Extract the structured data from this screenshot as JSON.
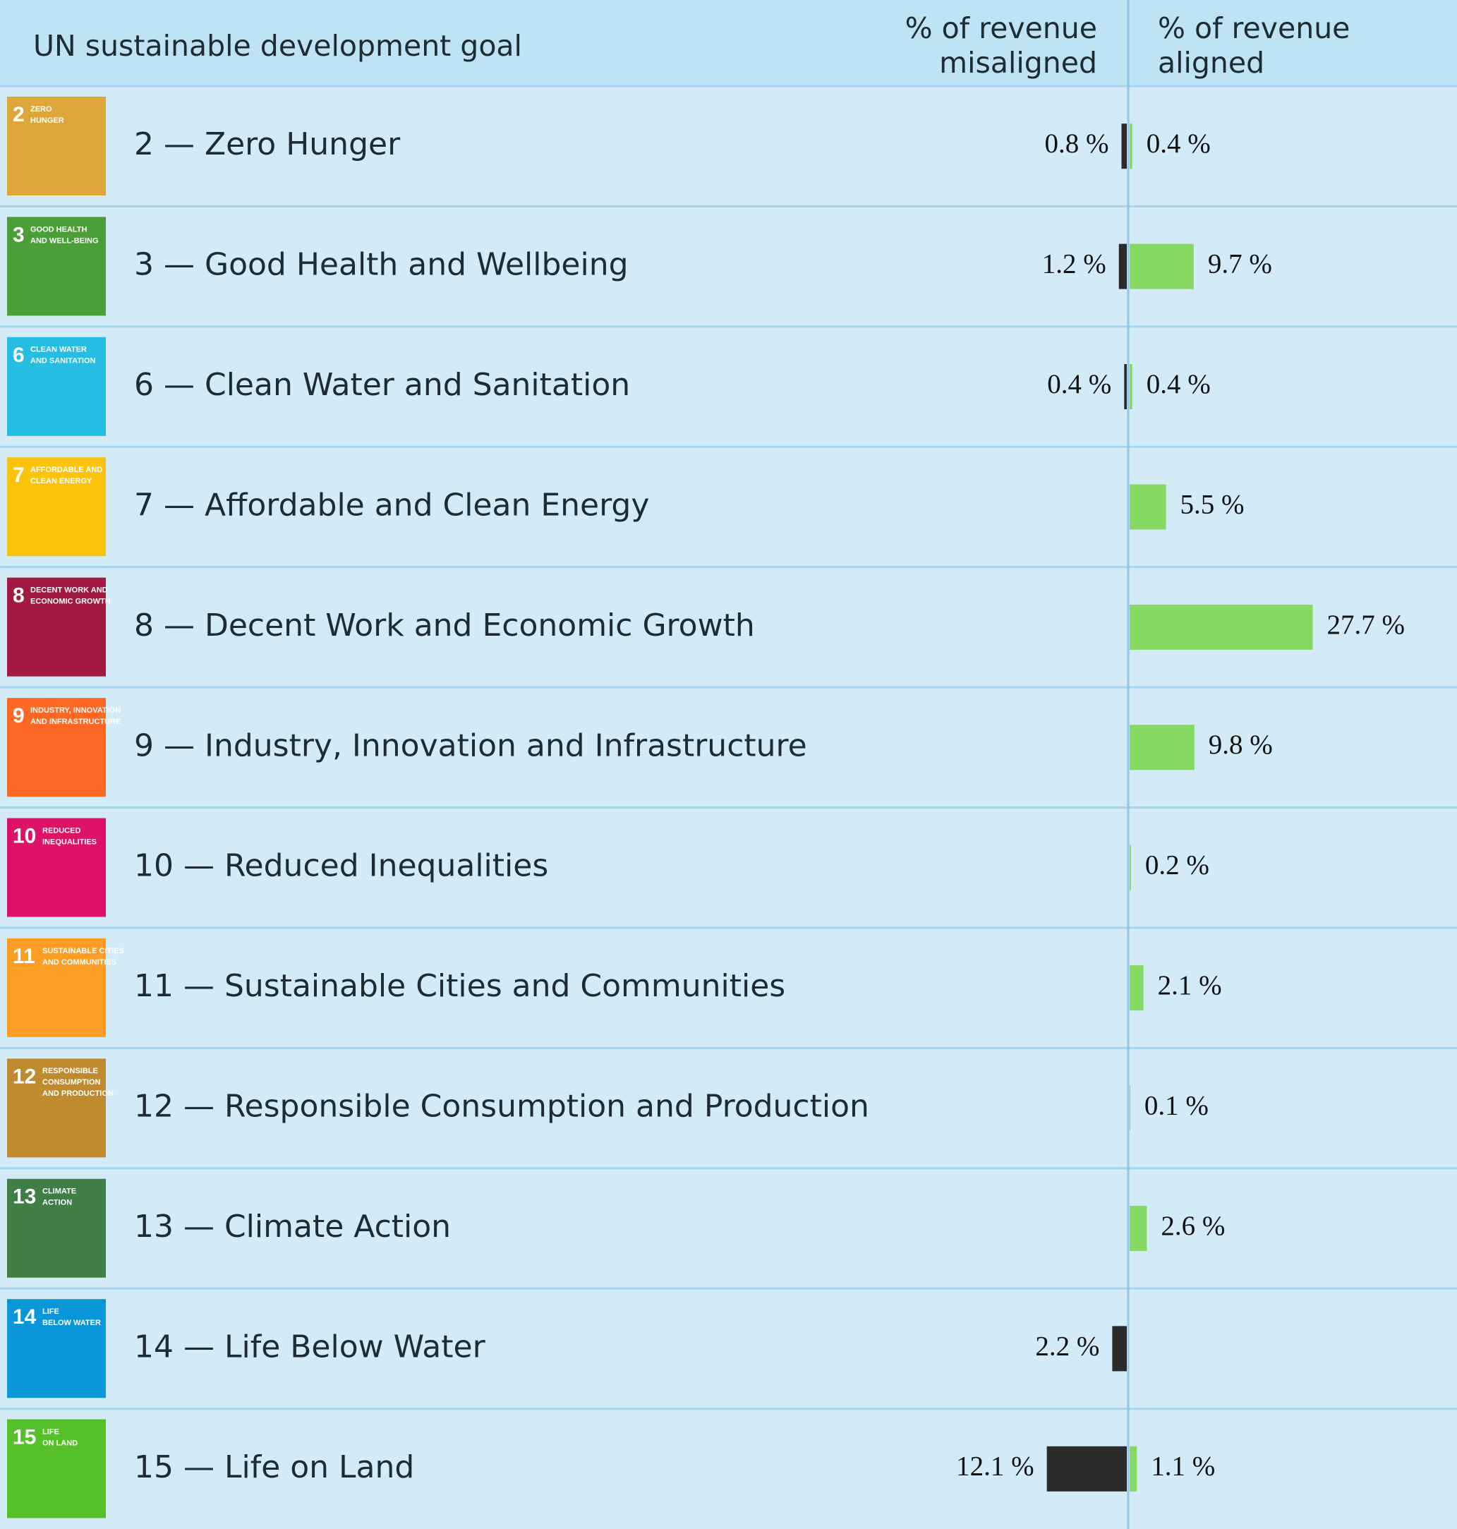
{
  "chart_data": {
    "type": "diverging_bar",
    "header_goal": "UN sustainable development goal",
    "header_misaligned": [
      "% of revenue",
      "misaligned"
    ],
    "header_aligned": [
      "% of revenue",
      "aligned"
    ],
    "categories": [
      "2 — Zero Hunger",
      "3 — Good Health and Wellbeing",
      "6 — Clean Water and Sanitation",
      "7 — Affordable and Clean Energy",
      "8 — Decent Work and Economic Growth",
      "9 — Industry, Innovation and Infrastructure",
      "10 — Reduced Inequalities",
      "11 — Sustainable Cities and Communities",
      "12 — Responsible Consumption and Production",
      "13 — Climate Action",
      "14 — Life Below Water",
      "15 — Life on Land"
    ],
    "icons": [
      {
        "number": "2",
        "text": [
          "ZERO",
          "HUNGER"
        ],
        "color": "#dda63a"
      },
      {
        "number": "3",
        "text": [
          "GOOD HEALTH",
          "AND WELL-BEING"
        ],
        "color": "#4c9f38"
      },
      {
        "number": "6",
        "text": [
          "CLEAN WATER",
          "AND SANITATION"
        ],
        "color": "#26bde2"
      },
      {
        "number": "7",
        "text": [
          "AFFORDABLE AND",
          "CLEAN ENERGY"
        ],
        "color": "#fcc30b"
      },
      {
        "number": "8",
        "text": [
          "DECENT WORK AND",
          "ECONOMIC GROWTH"
        ],
        "color": "#a21942"
      },
      {
        "number": "9",
        "text": [
          "INDUSTRY, INNOVATION",
          "AND INFRASTRUCTURE"
        ],
        "color": "#fd6925"
      },
      {
        "number": "10",
        "text": [
          "REDUCED",
          "INEQUALITIES"
        ],
        "color": "#dd1367"
      },
      {
        "number": "11",
        "text": [
          "SUSTAINABLE CITIES",
          "AND COMMUNITIES"
        ],
        "color": "#fd9d24"
      },
      {
        "number": "12",
        "text": [
          "RESPONSIBLE",
          "CONSUMPTION",
          "AND PRODUCTION"
        ],
        "color": "#bf8b2e"
      },
      {
        "number": "13",
        "text": [
          "CLIMATE",
          "ACTION"
        ],
        "color": "#3f7e44"
      },
      {
        "number": "14",
        "text": [
          "LIFE",
          "BELOW WATER"
        ],
        "color": "#0a97d9"
      },
      {
        "number": "15",
        "text": [
          "LIFE",
          "ON LAND"
        ],
        "color": "#56c02b"
      }
    ],
    "series": [
      {
        "name": "misaligned",
        "color": "#2b2b2b",
        "values": [
          0.8,
          1.2,
          0.4,
          null,
          null,
          null,
          null,
          null,
          null,
          null,
          2.2,
          12.1
        ],
        "value_labels": [
          "0.8 %",
          "1.2 %",
          "0.4 %",
          null,
          null,
          null,
          null,
          null,
          null,
          null,
          "2.2 %",
          "12.1 %"
        ]
      },
      {
        "name": "aligned",
        "color": "#86d962",
        "values": [
          0.4,
          9.7,
          0.4,
          5.5,
          27.7,
          9.8,
          0.2,
          2.1,
          0.1,
          2.6,
          null,
          1.1
        ],
        "value_labels": [
          "0.4 %",
          "9.7 %",
          "0.4 %",
          "5.5 %",
          "27.7 %",
          "9.8 %",
          "0.2 %",
          "2.1 %",
          "0.1 %",
          "2.6 %",
          null,
          "1.1 %"
        ]
      }
    ],
    "xlim": [
      0,
      30
    ]
  }
}
